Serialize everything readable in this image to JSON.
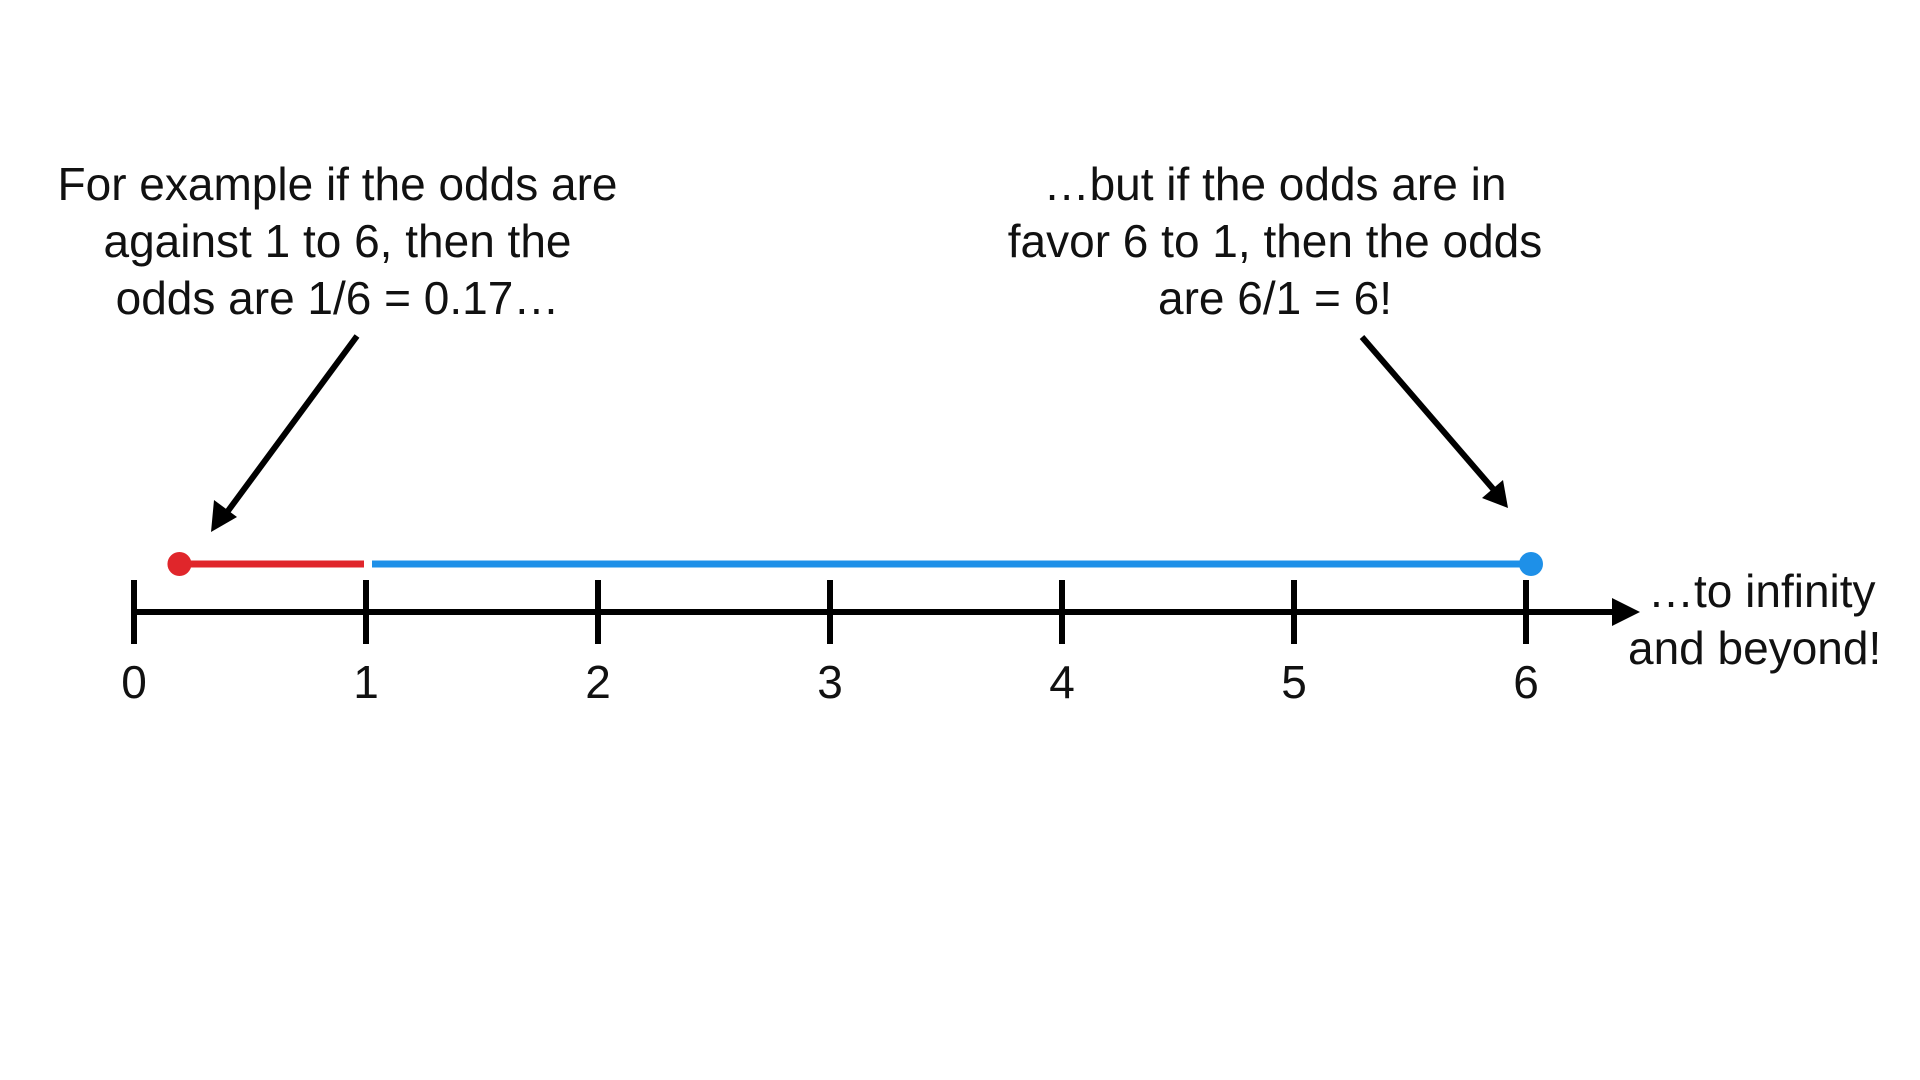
{
  "annotations": {
    "left": [
      "For example if the odds are",
      "against 1 to 6, then the",
      "odds are 1/6 = 0.17…"
    ],
    "right": [
      "…but if the odds are in",
      "favor 6 to 1, then the odds",
      "are 6/1 = 6!"
    ],
    "beyond": [
      "…to infinity",
      "and beyond!"
    ]
  },
  "number_line": {
    "ticks": [
      0,
      1,
      2,
      3,
      4,
      5,
      6
    ],
    "tick_labels": [
      "0",
      "1",
      "2",
      "3",
      "4",
      "5",
      "6"
    ],
    "segments": [
      {
        "start": 0.17,
        "end": 1,
        "color": "#e0262b"
      },
      {
        "start": 1,
        "end": 6,
        "color": "#1e90e8"
      }
    ],
    "axis_color": "#000000",
    "arrow_color": "#000000"
  }
}
